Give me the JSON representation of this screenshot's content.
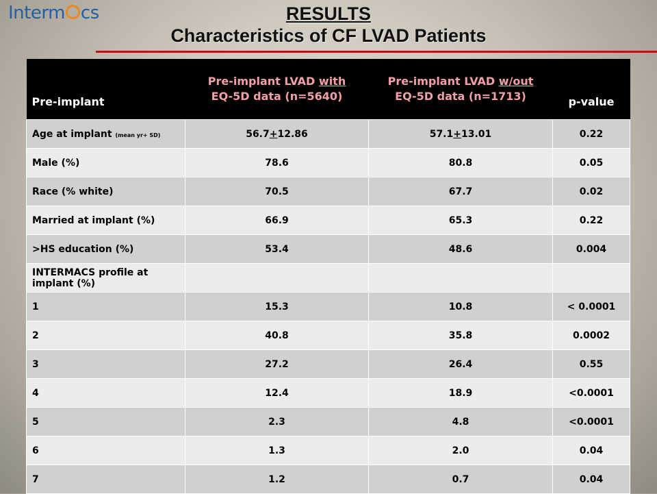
{
  "logo": {
    "left": "Interm",
    "right": "cs"
  },
  "title": "RESULTS",
  "subtitle": "Characteristics of CF LVAD Patients",
  "table": {
    "headers": {
      "c0": "Pre-implant",
      "c1_a": "Pre-implant LVAD ",
      "c1_b": "with",
      "c1_c": "EQ-5D data (n=5640)",
      "c2_a": "Pre-implant LVAD ",
      "c2_b": "w/out",
      "c2_c": "EQ-5D data (n=1713)",
      "c3": "p-value"
    },
    "age_row": {
      "label": "Age at implant ",
      "label_small": "(mean yr+ SD)",
      "v1_a": "56.7",
      "v1_b": "+",
      "v1_c": "12.86",
      "v2_a": "57.1",
      "v2_b": "+",
      "v2_c": "13.01",
      "p": "0.22"
    },
    "rows": [
      {
        "label": "Male (%)",
        "v1": "78.6",
        "v2": "80.8",
        "p": "0.05"
      },
      {
        "label": "Race (% white)",
        "v1": "70.5",
        "v2": "67.7",
        "p": "0.02"
      },
      {
        "label": "Married at implant (%)",
        "v1": "66.9",
        "v2": "65.3",
        "p": "0.22"
      },
      {
        "label": ">HS education (%)",
        "v1": "53.4",
        "v2": "48.6",
        "p": "0.004"
      },
      {
        "label": "INTERMACS profile at implant (%)",
        "v1": "",
        "v2": "",
        "p": ""
      },
      {
        "label": "1",
        "v1": "15.3",
        "v2": "10.8",
        "p": "< 0.0001"
      },
      {
        "label": "2",
        "v1": "40.8",
        "v2": "35.8",
        "p": "0.0002"
      },
      {
        "label": "3",
        "v1": "27.2",
        "v2": "26.4",
        "p": "0.55"
      },
      {
        "label": "4",
        "v1": "12.4",
        "v2": "18.9",
        "p": "<0.0001"
      },
      {
        "label": "5",
        "v1": "2.3",
        "v2": "4.8",
        "p": "<0.0001"
      },
      {
        "label": "6",
        "v1": "1.3",
        "v2": "2.0",
        "p": "0.04"
      },
      {
        "label": "7",
        "v1": "1.2",
        "v2": "0.7",
        "p": "0.04"
      }
    ]
  },
  "colors": {
    "header_bg": "#000000",
    "header_group_text": "#f2a0a6",
    "row_gray": "#d0d0d0",
    "row_light": "#ececec",
    "accent_line": "#b01818",
    "logo_blue": "#1f5fa8",
    "logo_ring": "#e88a24"
  }
}
